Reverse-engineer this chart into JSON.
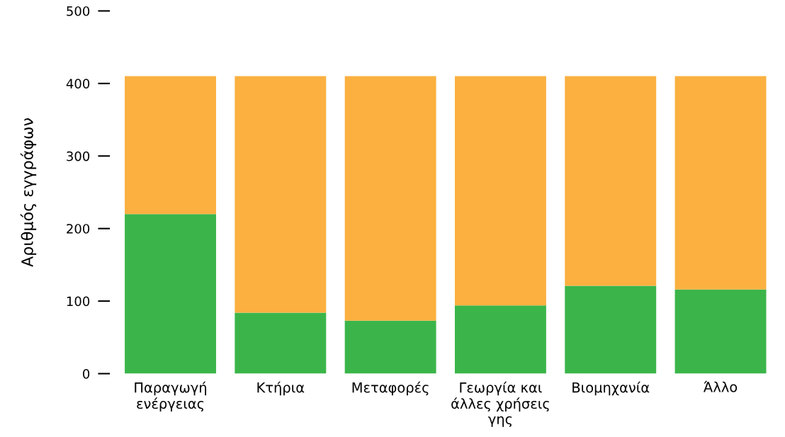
{
  "chart_data": {
    "type": "bar",
    "stacked": true,
    "ylabel": "Αριθμός εγγράφων",
    "categories": [
      "Παραγωγή\nενέργειας",
      "Κτήρια",
      "Μεταφορές",
      "Γεωργία και\nάλλες χρήσεις\nγης",
      "Βιομηχανία",
      "Άλλο"
    ],
    "series": [
      {
        "color": "#3bb54a",
        "values": [
          220,
          84,
          73,
          94,
          121,
          116
        ]
      },
      {
        "color": "#fbb040",
        "values": [
          190,
          326,
          337,
          316,
          289,
          294
        ]
      }
    ],
    "ylim": [
      0,
      500
    ],
    "yticks": [
      0,
      100,
      200,
      300,
      400,
      500
    ],
    "grid": false
  }
}
